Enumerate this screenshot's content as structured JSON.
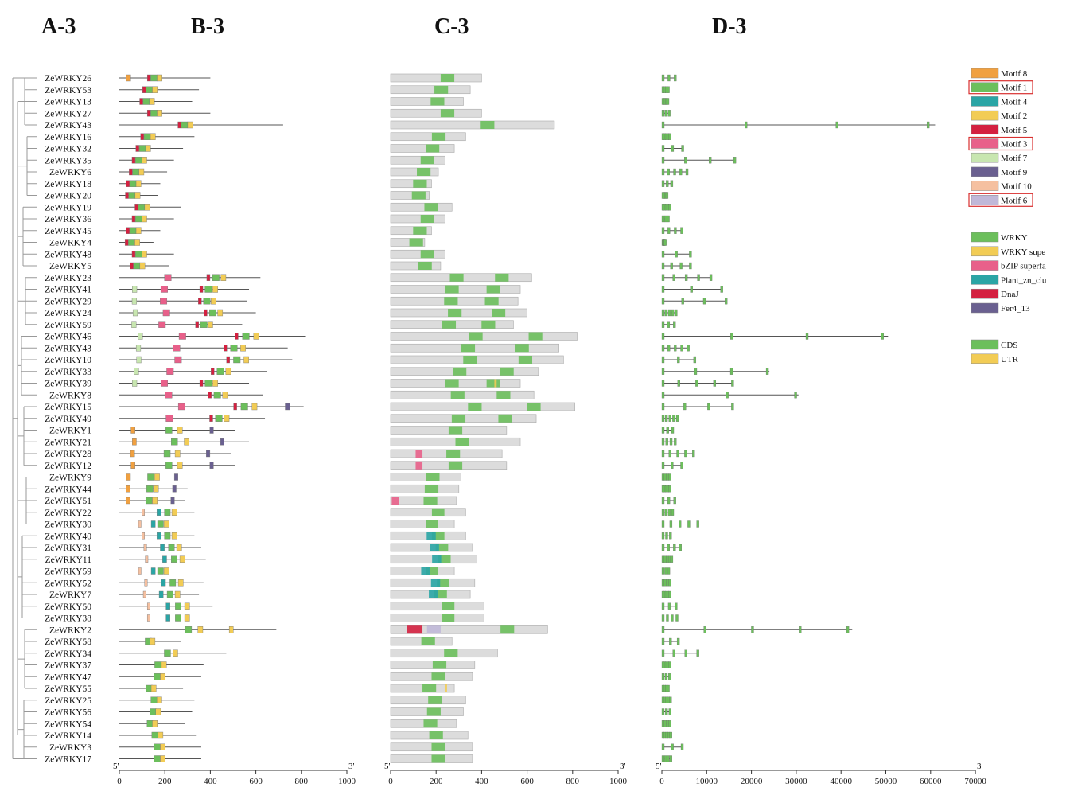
{
  "panels": {
    "a": "A-3",
    "b": "B-3",
    "c": "C-3",
    "d": "D-3"
  },
  "genes": [
    "ZeWRKY26",
    "ZeWRKY53",
    "ZeWRKY13",
    "ZeWRKY27",
    "ZeWRKY43",
    "ZeWRKY16",
    "ZeWRKY32",
    "ZeWRKY35",
    "ZeWRKY6",
    "ZeWRKY18",
    "ZeWRKY20",
    "ZeWRKY19",
    "ZeWRKY36",
    "ZeWRKY45",
    "ZeWRKY4",
    "ZeWRKY48",
    "ZeWRKY5",
    "ZeWRKY23",
    "ZeWRKY41",
    "ZeWRKY29",
    "ZeWRKY24",
    "ZeWRKY59",
    "ZeWRKY46",
    "ZeWRKY43",
    "ZeWRKY10",
    "ZeWRKY33",
    "ZeWRKY39",
    "ZeWRKY8",
    "ZeWRKY15",
    "ZeWRKY49",
    "ZeWRKY1",
    "ZeWRKY21",
    "ZeWRKY28",
    "ZeWRKY12",
    "ZeWRKY9",
    "ZeWRKY44",
    "ZeWRKY51",
    "ZeWRKY22",
    "ZeWRKY30",
    "ZeWRKY40",
    "ZeWRKY31",
    "ZeWRKY11",
    "ZeWRKY59",
    "ZeWRKY52",
    "ZeWRKY7",
    "ZeWRKY50",
    "ZeWRKY38",
    "ZeWRKY2",
    "ZeWRKY58",
    "ZeWRKY34",
    "ZeWRKY37",
    "ZeWRKY47",
    "ZeWRKY55",
    "ZeWRKY25",
    "ZeWRKY56",
    "ZeWRKY54",
    "ZeWRKY14",
    "ZeWRKY3",
    "ZeWRKY17"
  ],
  "lengths_aa": [
    400,
    350,
    320,
    400,
    720,
    330,
    280,
    240,
    210,
    180,
    170,
    270,
    240,
    180,
    150,
    240,
    220,
    620,
    570,
    560,
    600,
    540,
    820,
    740,
    760,
    650,
    570,
    630,
    810,
    640,
    510,
    570,
    490,
    510,
    310,
    300,
    290,
    330,
    280,
    330,
    360,
    380,
    280,
    370,
    350,
    410,
    410,
    690,
    270,
    470,
    370,
    360,
    280,
    330,
    320,
    290,
    340,
    360,
    360
  ],
  "motif_legend": [
    {
      "label": "Motif 8",
      "color": "#f0a040",
      "boxed": false
    },
    {
      "label": "Motif 1",
      "color": "#6cbf5c",
      "boxed": true
    },
    {
      "label": "Motif 4",
      "color": "#2aa5a5",
      "boxed": false
    },
    {
      "label": "Motif 2",
      "color": "#f2cc55",
      "boxed": false
    },
    {
      "label": "Motif 5",
      "color": "#d42040",
      "boxed": false
    },
    {
      "label": "Motif 3",
      "color": "#e8608a",
      "boxed": true
    },
    {
      "label": "Motif 7",
      "color": "#c8e6b0",
      "boxed": false
    },
    {
      "label": "Motif 9",
      "color": "#6a6090",
      "boxed": false
    },
    {
      "label": "Motif 10",
      "color": "#f5c0a0",
      "boxed": false
    },
    {
      "label": "Motif 6",
      "color": "#c0b8d8",
      "boxed": true
    }
  ],
  "domain_legend": [
    {
      "label": "WRKY",
      "color": "#6cbf5c"
    },
    {
      "label": "WRKY supe",
      "color": "#f2cc55"
    },
    {
      "label": "bZIP superfa",
      "color": "#e8608a"
    },
    {
      "label": "Plant_zn_clu",
      "color": "#2aa5a5"
    },
    {
      "label": "DnaJ",
      "color": "#d42040"
    },
    {
      "label": "Fer4_13",
      "color": "#6a6090"
    }
  ],
  "structure_legend": [
    {
      "label": "CDS",
      "color": "#6cbf5c"
    },
    {
      "label": "UTR",
      "color": "#f2cc55"
    }
  ],
  "axis_b": {
    "ticks": [
      "0",
      "200",
      "400",
      "600",
      "800",
      "1000"
    ],
    "start": "5'",
    "end": "3'"
  },
  "axis_c": {
    "ticks": [
      "0",
      "200",
      "400",
      "600",
      "800",
      "1000"
    ],
    "start": "5'",
    "end": "3'"
  },
  "axis_d": {
    "ticks": [
      "0",
      "10000",
      "20000",
      "30000",
      "40000",
      "50000",
      "60000",
      "70000"
    ],
    "start": "5'",
    "end": "3'"
  },
  "colors": {
    "line": "#555555",
    "protein_bg": "#dcdcdc",
    "tree": "#999999",
    "box_border": "#d9302f"
  }
}
